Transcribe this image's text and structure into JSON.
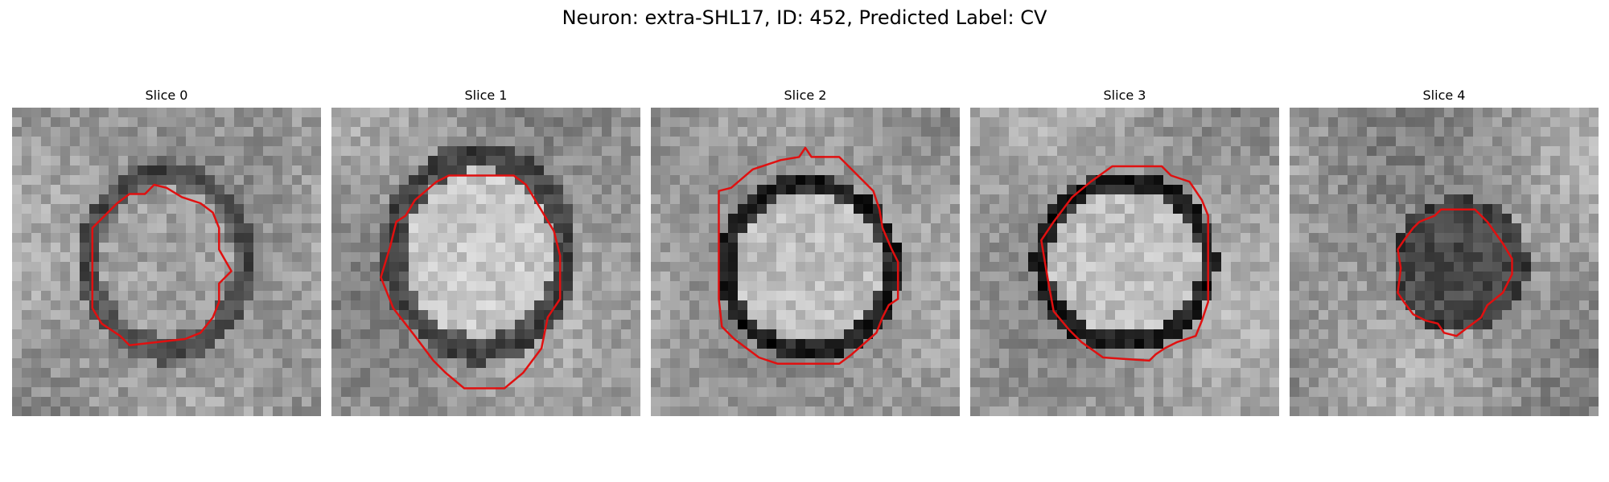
{
  "figure": {
    "title": "Neuron: extra-SHL17, ID: 452, Predicted Label: CV",
    "contour_color": "#e01010",
    "colormap": "gray"
  },
  "panels": [
    {
      "title": "Slice 0"
    },
    {
      "title": "Slice 1"
    },
    {
      "title": "Slice 2"
    },
    {
      "title": "Slice 3"
    },
    {
      "title": "Slice 4"
    }
  ]
}
